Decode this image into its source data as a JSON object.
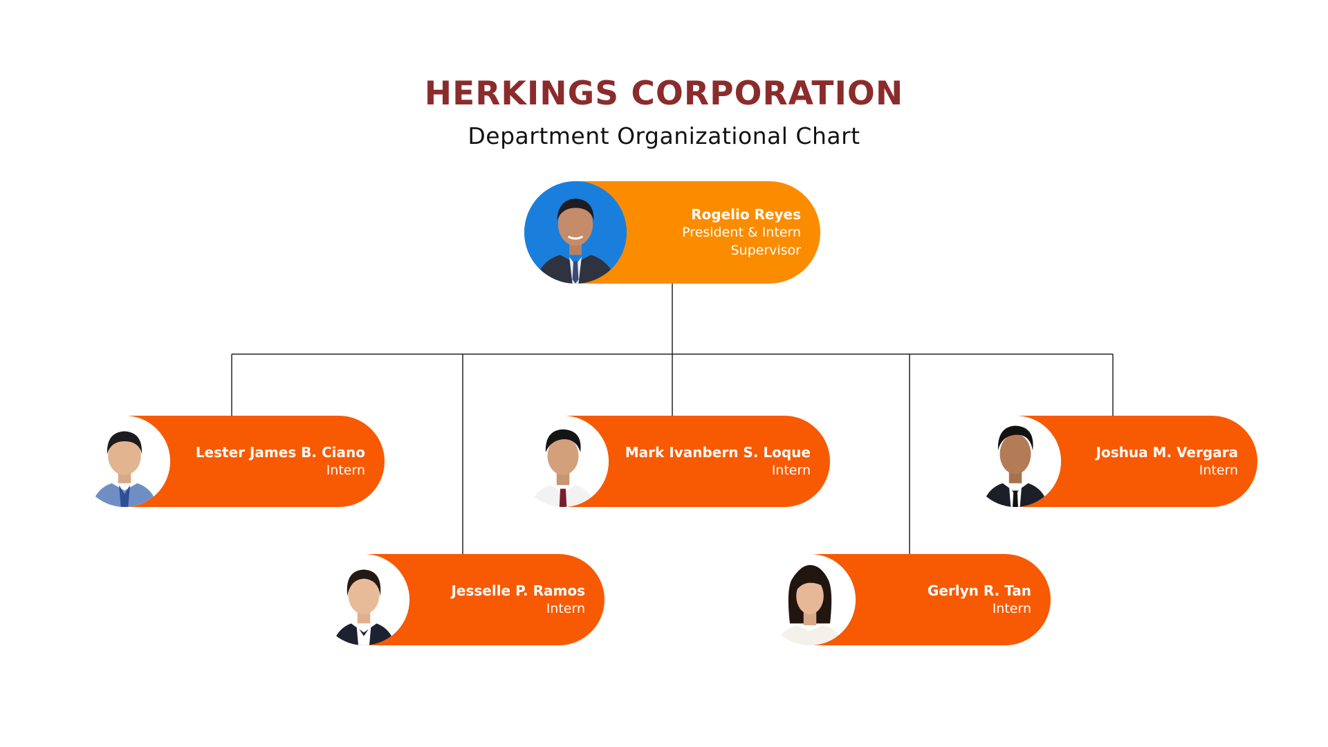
{
  "header": {
    "title": "HERKINGS CORPORATION",
    "subtitle": "Department Organizational Chart"
  },
  "colors": {
    "title": "#8b2c2c",
    "top_node": "#fb8c00",
    "member_node": "#f75a02",
    "connector": "#222222"
  },
  "supervisor": {
    "name": "Rogelio Reyes",
    "role": "President & Intern Supervisor"
  },
  "members": [
    {
      "name": "Lester James B. Ciano",
      "role": "Intern"
    },
    {
      "name": "Jesselle P. Ramos",
      "role": "Intern"
    },
    {
      "name": "Mark Ivanbern S. Loque",
      "role": "Intern"
    },
    {
      "name": "Gerlyn R. Tan",
      "role": "Intern"
    },
    {
      "name": "Joshua M. Vergara",
      "role": "Intern"
    }
  ]
}
